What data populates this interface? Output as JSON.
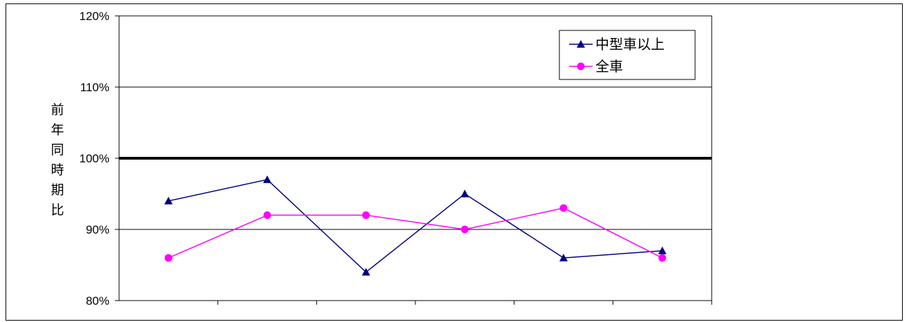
{
  "chart_data": {
    "type": "line",
    "ylabel": "前年同時期比",
    "ylim": [
      0.8,
      1.2
    ],
    "y_ticks": [
      "80%",
      "90%",
      "100%",
      "110%",
      "120%"
    ],
    "y_tick_values": [
      0.8,
      0.9,
      1.0,
      1.1,
      1.2
    ],
    "reference_line": 1.0,
    "x_points": 6,
    "legend_position": "top-right",
    "series": [
      {
        "name": "中型車以上",
        "color": "#000080",
        "marker": "triangle",
        "values": [
          0.94,
          0.97,
          0.84,
          0.95,
          0.86,
          0.87
        ]
      },
      {
        "name": "全車",
        "color": "#FF00FF",
        "marker": "circle",
        "values": [
          0.86,
          0.92,
          0.92,
          0.9,
          0.93,
          0.86
        ]
      }
    ]
  }
}
